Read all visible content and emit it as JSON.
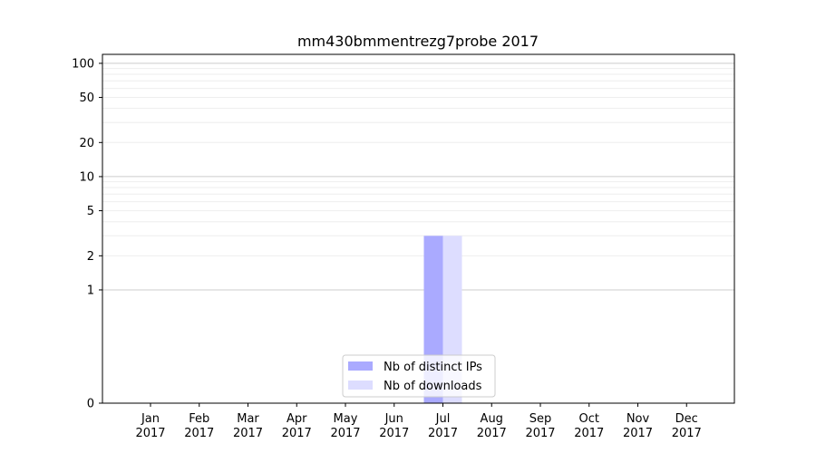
{
  "chart_data": {
    "type": "bar",
    "title": "mm430bmmentrezg7probe 2017",
    "xlabel": "",
    "ylabel": "",
    "yscale": "symlog",
    "ylim": [
      0,
      120
    ],
    "yticks": [
      0,
      1,
      2,
      5,
      10,
      20,
      50,
      100
    ],
    "ytick_labels": [
      "0",
      "1",
      "2",
      "5",
      "10",
      "20",
      "50",
      "100"
    ],
    "categories": [
      "Jan\n2017",
      "Feb\n2017",
      "Mar\n2017",
      "Apr\n2017",
      "May\n2017",
      "Jun\n2017",
      "Jul\n2017",
      "Aug\n2017",
      "Sep\n2017",
      "Oct\n2017",
      "Nov\n2017",
      "Dec\n2017"
    ],
    "series": [
      {
        "name": "Nb of distinct IPs",
        "color": "#aaaaff",
        "values": [
          0,
          0,
          0,
          0,
          0,
          0,
          3,
          0,
          0,
          0,
          0,
          0
        ]
      },
      {
        "name": "Nb of downloads",
        "color": "#ddddff",
        "values": [
          0,
          0,
          0,
          0,
          0,
          0,
          3,
          0,
          0,
          0,
          0,
          0
        ]
      }
    ],
    "grid": true,
    "legend_position": "bottom-center"
  }
}
